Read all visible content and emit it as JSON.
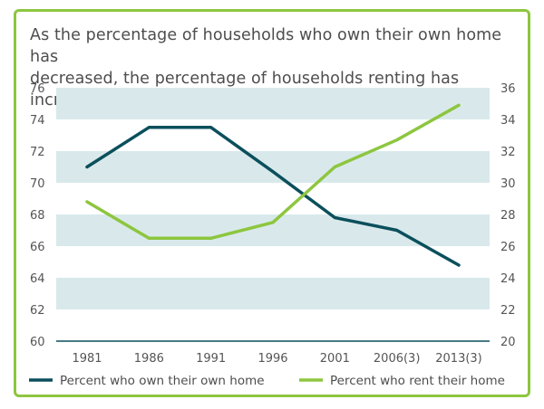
{
  "chart_data": {
    "type": "line",
    "title": "As the percentage of households who own their own home has\ndecreased, the percentage of households renting has increased.",
    "categories": [
      "1981",
      "1986",
      "1991",
      "1996",
      "2001",
      "2006(3)",
      "2013(3)"
    ],
    "series": [
      {
        "name": "Percent who own their own home",
        "axis": "left",
        "color": "#0b4f5c",
        "values": [
          71.0,
          73.5,
          73.5,
          70.7,
          67.8,
          67.0,
          64.8
        ]
      },
      {
        "name": "Percent who rent their home",
        "axis": "right",
        "color": "#8dc63f",
        "values": [
          28.8,
          26.5,
          26.5,
          27.5,
          31.0,
          32.7,
          34.9
        ]
      }
    ],
    "y_left": {
      "range": [
        60,
        76
      ],
      "ticks": [
        "60",
        "62",
        "64",
        "66",
        "68",
        "70",
        "72",
        "74",
        "76"
      ]
    },
    "y_right": {
      "range": [
        20,
        36
      ],
      "ticks": [
        "20",
        "22",
        "24",
        "26",
        "28",
        "30",
        "32",
        "34",
        "36"
      ]
    },
    "grid": "alternating horizontal bands",
    "band_color": "#d9e9eb",
    "axis_color": "#0b4f5c",
    "legend_position": "bottom"
  }
}
